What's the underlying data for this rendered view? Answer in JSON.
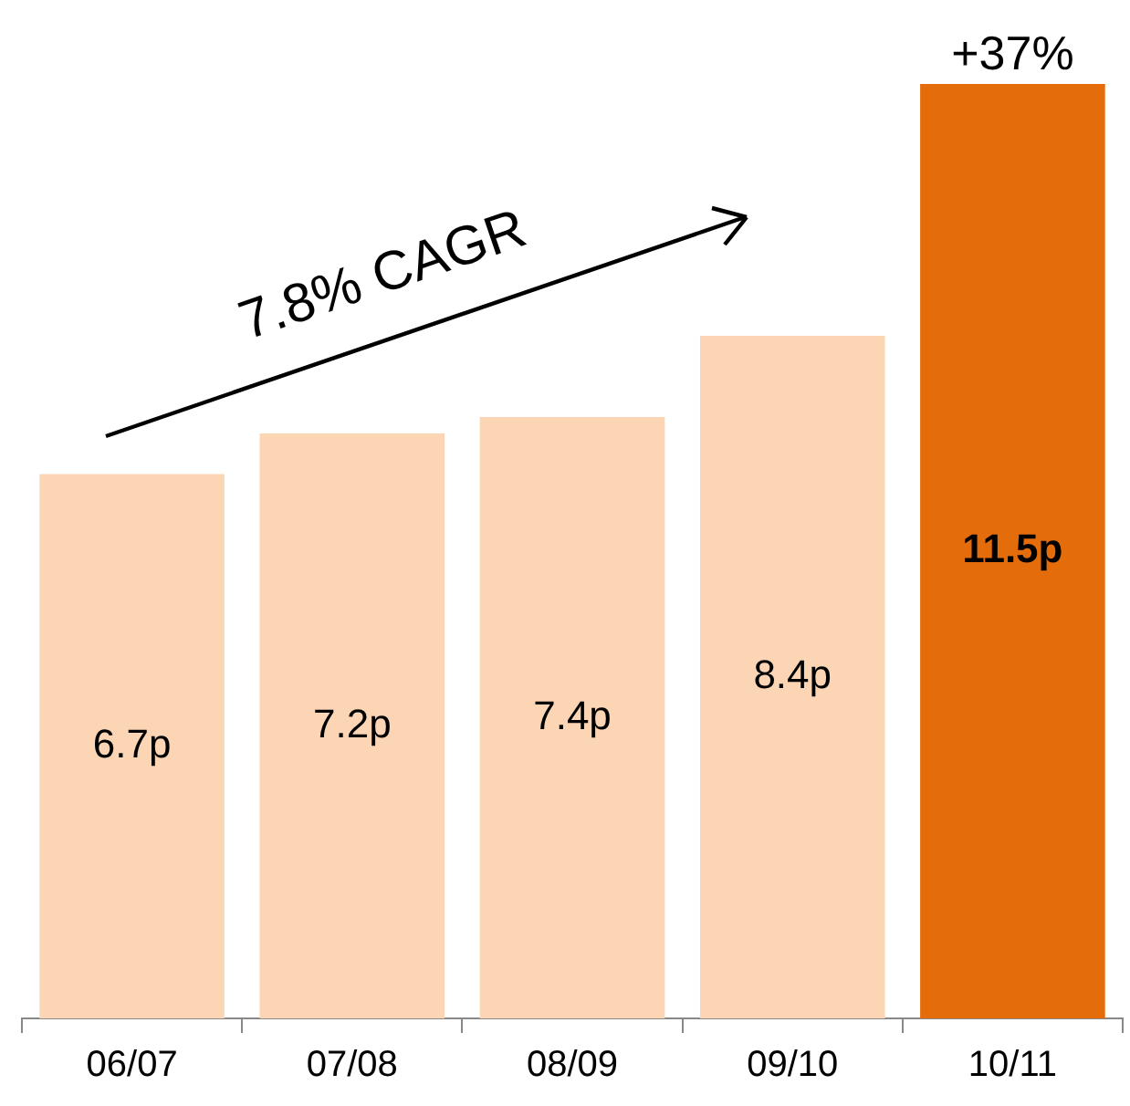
{
  "chart_data": {
    "type": "bar",
    "categories": [
      "06/07",
      "07/08",
      "08/09",
      "09/10",
      "10/11"
    ],
    "values": [
      6.7,
      7.2,
      7.4,
      8.4,
      11.5
    ],
    "colors": [
      "#fcd5b4",
      "#fcd5b4",
      "#fcd5b4",
      "#fcd5b4",
      "#e46c0a"
    ],
    "value_labels": [
      "6.7p",
      "7.2p",
      "7.4p",
      "8.4p",
      "11.5p"
    ],
    "annotations": [
      {
        "text": "+37%",
        "x": "10/11",
        "y": 11.5
      },
      "7.8% CAGR"
    ],
    "grid": false,
    "legend": false
  }
}
